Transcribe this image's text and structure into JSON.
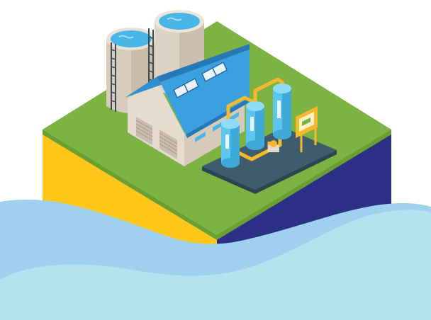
{
  "scene": {
    "description_free": true,
    "colors": {
      "background": "#ffffff",
      "grass": "#7cb342",
      "cube_left": "#ffc61a",
      "cube_right": "#2b2f86",
      "water_back": "#9fd0ee",
      "water_front": "#b6e2f0",
      "roof": "#3aa0df",
      "building_wall": "#e5dccf",
      "tank_body": "#ddd3c5",
      "tank_water": "#49b6e8",
      "pipe": "#f6b92b",
      "platform": "#3d5c6e",
      "vessel": "#5cc6ef",
      "panel": "#f6b92b"
    },
    "icons": [
      "water-tower-icon",
      "factory-building-icon",
      "filter-vessel-icon",
      "control-panel-icon"
    ]
  }
}
